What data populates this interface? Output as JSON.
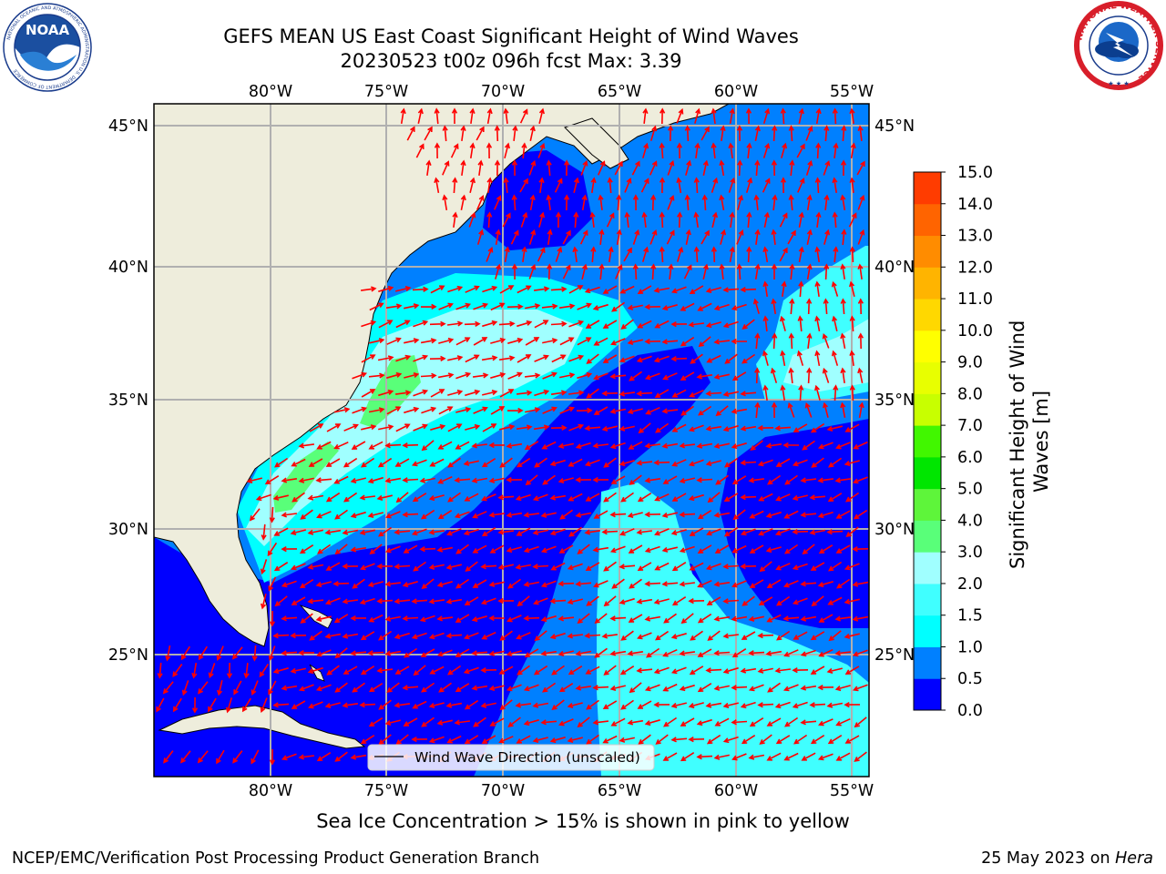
{
  "header": {
    "title_line1": "GEFS MEAN US East Coast Significant Height of Wind Waves",
    "title_line2": "20230523 t00z 096h fcst   Max: 3.39"
  },
  "logos": {
    "left_text": "NOAA",
    "left_ring_text": "NATIONAL OCEANIC AND ATMOSPHERIC ADMINISTRATION U.S. DEPARTMENT OF COMMERCE",
    "right_ring_text": "NATIONAL WEATHER SERVICE"
  },
  "map": {
    "lon_labels": [
      "80°W",
      "75°W",
      "70°W",
      "65°W",
      "60°W",
      "55°W"
    ],
    "lat_labels": [
      "45°N",
      "40°N",
      "35°N",
      "30°N",
      "25°N"
    ],
    "land_color": "#eeeddc",
    "arrow_color": "#ff0000",
    "grid_color": "#b0b0b0",
    "legend_label": "Wind Wave Direction (unscaled)"
  },
  "colorbar": {
    "title": "Significant Height of Wind Waves [m]",
    "title_line1": "Significant Height of Wind",
    "title_line2": "Waves [m]",
    "ticks": [
      "0.0",
      "0.5",
      "1.0",
      "1.5",
      "2.0",
      "3.0",
      "4.0",
      "5.0",
      "6.0",
      "7.0",
      "8.0",
      "9.0",
      "10.0",
      "11.0",
      "12.0",
      "13.0",
      "14.0",
      "15.0"
    ],
    "colors": [
      "#0000ff",
      "#0080ff",
      "#00ffff",
      "#40ffff",
      "#a0ffff",
      "#59ff79",
      "#5ef53a",
      "#00e600",
      "#41f700",
      "#c8ff00",
      "#e8ff00",
      "#ffff00",
      "#ffd800",
      "#ffb400",
      "#ff8c00",
      "#ff6400",
      "#ff3c00",
      "#ff0000"
    ]
  },
  "footer": {
    "sea_ice_note": "Sea Ice Concentration > 15% is shown in pink to yellow",
    "credit": "NCEP/EMC/Verification Post Processing Product Generation Branch",
    "date": "25 May 2023 on",
    "host": "Hera"
  }
}
